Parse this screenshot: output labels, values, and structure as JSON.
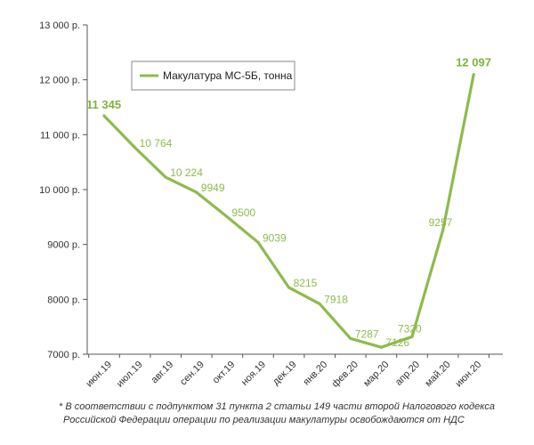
{
  "chart_data": {
    "type": "line",
    "categories": [
      "июн.19",
      "июл.19",
      "авг.19",
      "сен.19",
      "окт.19",
      "ноя.19",
      "дек.19",
      "янв.20",
      "фев.20",
      "мар.20",
      "апр.20",
      "май.20",
      "июн.20"
    ],
    "series": [
      {
        "name": "Макулатура МС-5Б, тонна",
        "values": [
          11345,
          10764,
          10224,
          9949,
          9500,
          9039,
          8215,
          7918,
          7287,
          7126,
          7320,
          9257,
          12097
        ],
        "labels": [
          "11 345",
          "10 764",
          "10 224",
          "9949",
          "9500",
          "9039",
          "8215",
          "7918",
          "7287",
          "7126",
          "7320",
          "9257",
          "12 097"
        ],
        "color": "#8dbb4c"
      }
    ],
    "yticks": [
      7000,
      8000,
      9000,
      10000,
      11000,
      12000,
      13000
    ],
    "ytick_labels": [
      "7000 р.",
      "8000 р.",
      "9000 р.",
      "10 000 р.",
      "11 000 р.",
      "12 000 р.",
      "13 000 р."
    ],
    "ylim": [
      7000,
      13000
    ],
    "grid": false,
    "legend_position": "top-left"
  },
  "footnote": {
    "line1": "* В соответствии с подпунктом 31 пункта 2 статьи 149 части второй Налогового кодекса",
    "line2": "Российской Федерации операции по реализации макулатуры освобождаются от НДС"
  }
}
